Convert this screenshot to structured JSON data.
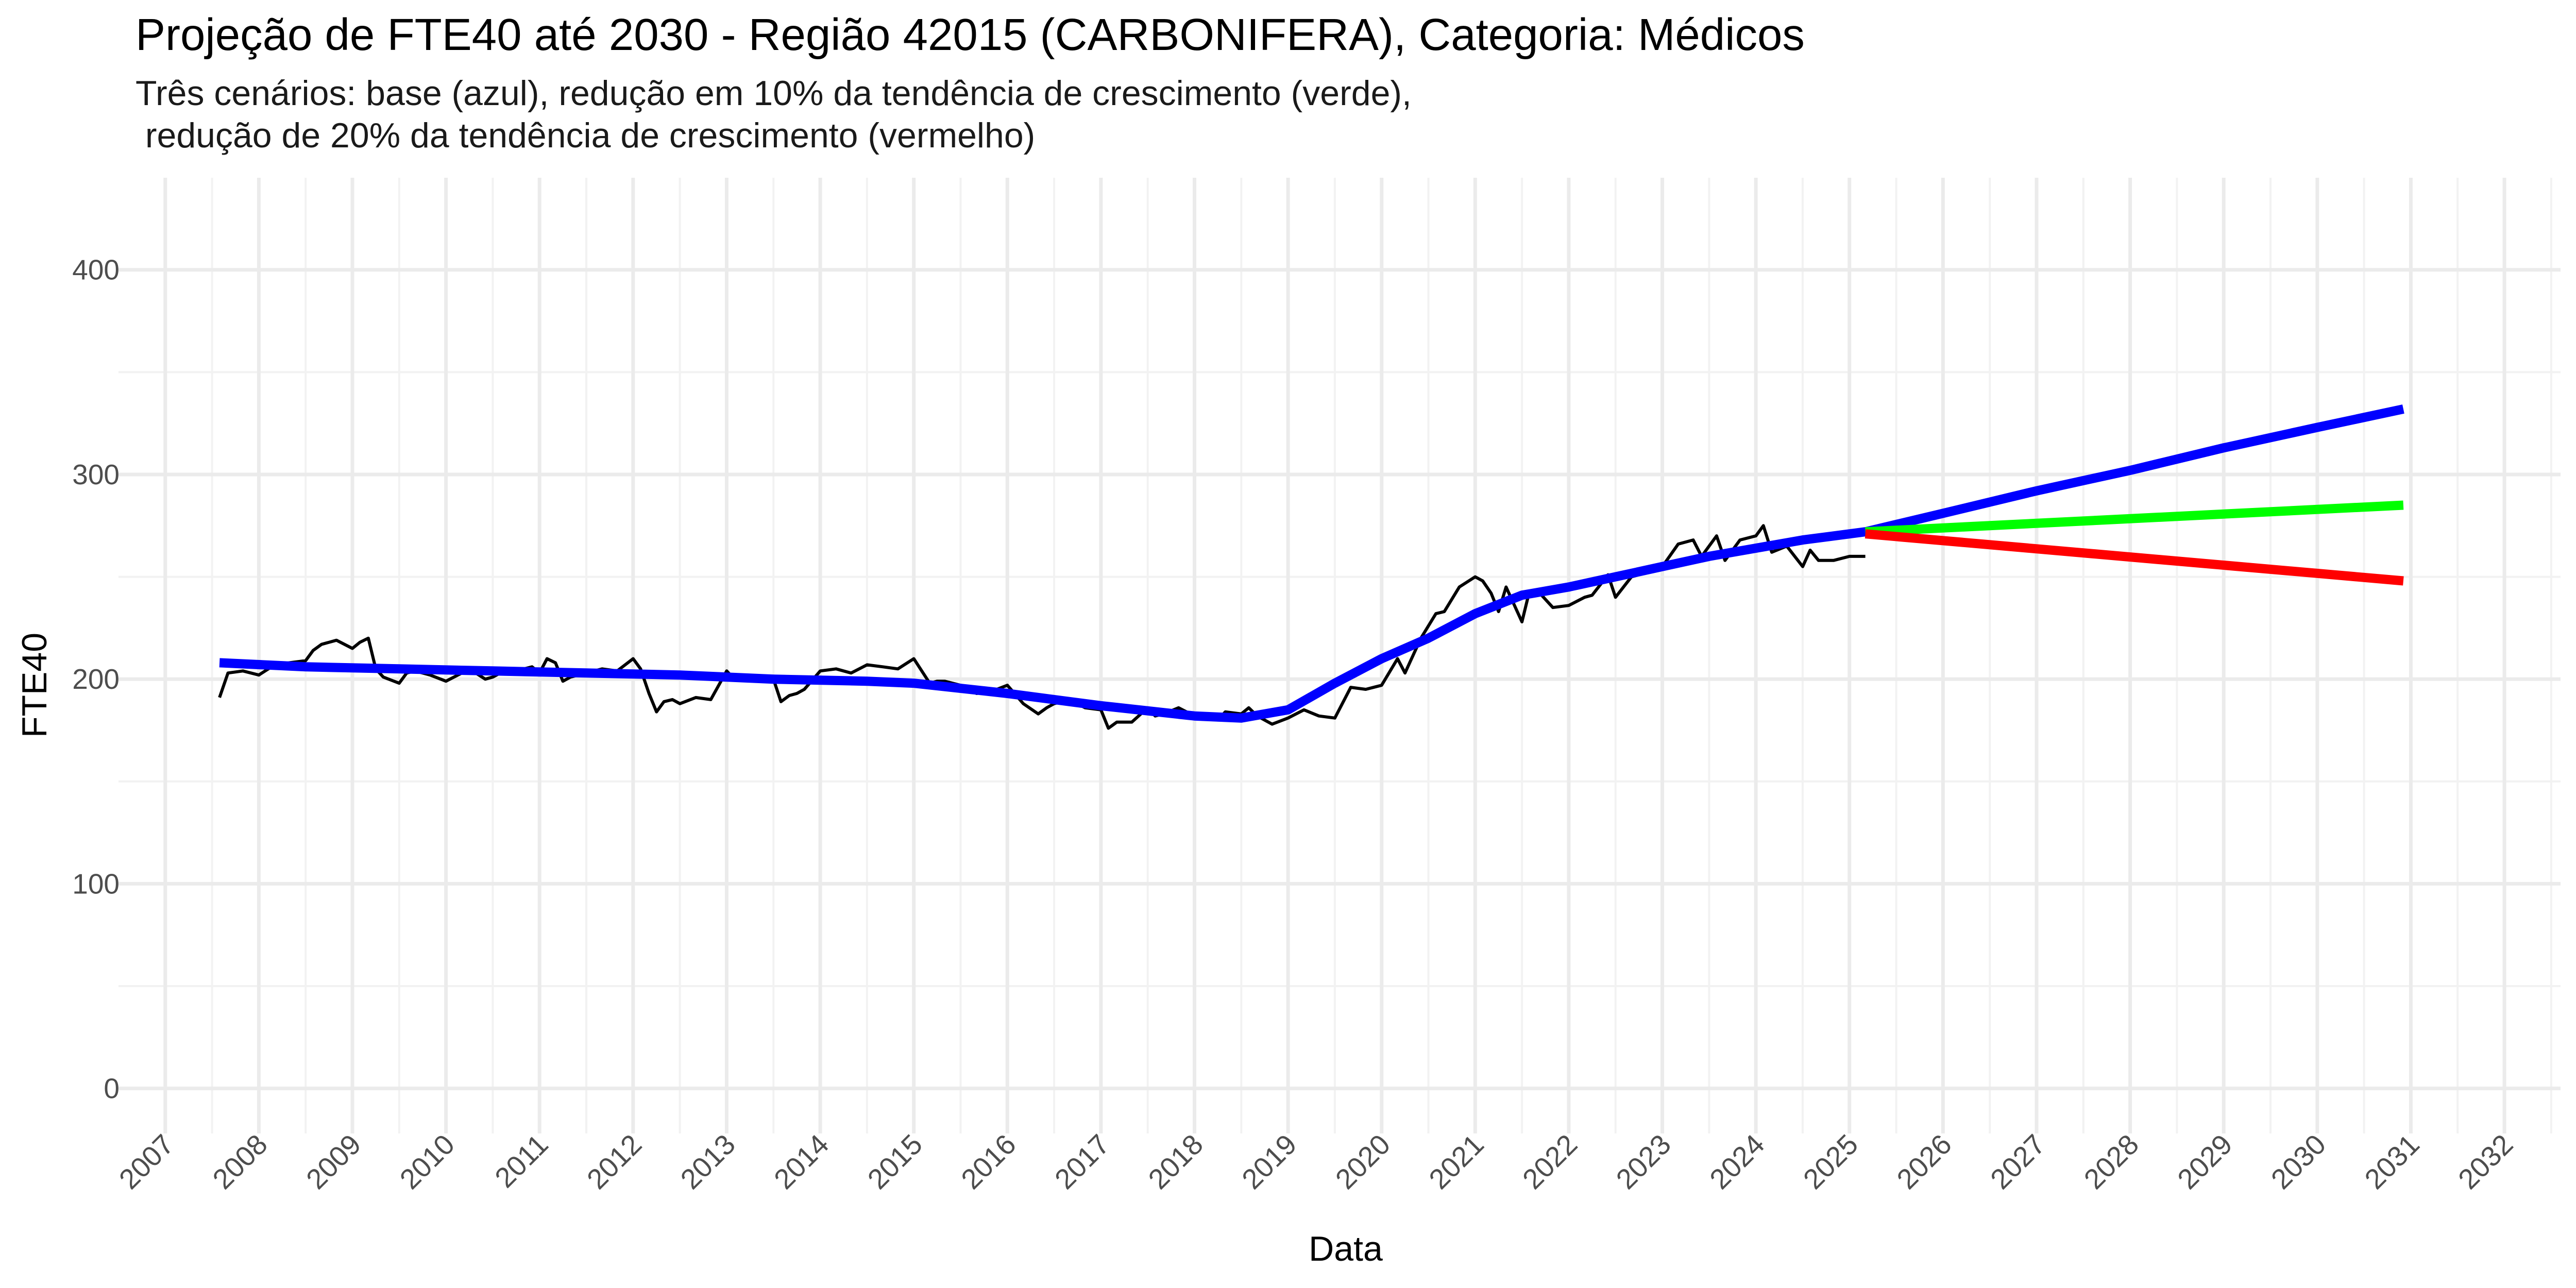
{
  "chart_data": {
    "type": "line",
    "title": "Projeção de FTE40 até 2030 - Região 42015 (CARBONIFERA), Categoria: Médicos",
    "subtitle": "Três cenários: base (azul), redução em 10% da tendência de crescimento (verde),\n redução de 20% da tendência de crescimento (vermelho)",
    "xlabel": "Data",
    "ylabel": "FTE40",
    "xlim": [
      2006.5,
      2032.6
    ],
    "ylim": [
      -22,
      445
    ],
    "x_ticks": [
      "2007",
      "2008",
      "2009",
      "2010",
      "2011",
      "2012",
      "2013",
      "2014",
      "2015",
      "2016",
      "2017",
      "2018",
      "2019",
      "2020",
      "2021",
      "2022",
      "2023",
      "2024",
      "2025",
      "2026",
      "2027",
      "2028",
      "2029",
      "2030",
      "2031",
      "2032"
    ],
    "y_ticks": [
      0,
      100,
      200,
      300,
      400
    ],
    "grid": true,
    "legend": "none",
    "series": [
      {
        "color": "#000000",
        "x": [
          2007.58,
          2007.67,
          2007.83,
          2008.0,
          2008.17,
          2008.33,
          2008.5,
          2008.58,
          2008.67,
          2008.83,
          2009.0,
          2009.08,
          2009.17,
          2009.25,
          2009.33,
          2009.5,
          2009.58,
          2009.67,
          2009.83,
          2010.0,
          2010.17,
          2010.25,
          2010.42,
          2010.5,
          2010.58,
          2010.75,
          2010.92,
          2011.0,
          2011.08,
          2011.17,
          2011.25,
          2011.33,
          2011.5,
          2011.67,
          2011.83,
          2012.0,
          2012.08,
          2012.17,
          2012.25,
          2012.33,
          2012.42,
          2012.5,
          2012.67,
          2012.83,
          2013.0,
          2013.08,
          2013.17,
          2013.33,
          2013.5,
          2013.58,
          2013.67,
          2013.75,
          2013.83,
          2014.0,
          2014.17,
          2014.33,
          2014.5,
          2014.67,
          2014.83,
          2015.0,
          2015.17,
          2015.25,
          2015.33,
          2015.5,
          2015.67,
          2015.83,
          2016.0,
          2016.17,
          2016.33,
          2016.42,
          2016.5,
          2016.67,
          2016.83,
          2017.0,
          2017.08,
          2017.17,
          2017.33,
          2017.5,
          2017.58,
          2017.67,
          2017.83,
          2018.0,
          2018.17,
          2018.25,
          2018.33,
          2018.5,
          2018.58,
          2018.67,
          2018.83,
          2019.0,
          2019.17,
          2019.33,
          2019.5,
          2019.67,
          2019.83,
          2020.0,
          2020.17,
          2020.25,
          2020.42,
          2020.58,
          2020.67,
          2020.83,
          2021.0,
          2021.08,
          2021.17,
          2021.25,
          2021.33,
          2021.5,
          2021.58,
          2021.67,
          2021.83,
          2022.0,
          2022.17,
          2022.25,
          2022.42,
          2022.5,
          2022.67,
          2022.83,
          2023.0,
          2023.17,
          2023.33,
          2023.42,
          2023.58,
          2023.67,
          2023.83,
          2024.0,
          2024.08,
          2024.17,
          2024.33,
          2024.5,
          2024.58,
          2024.67,
          2024.83,
          2025.0,
          2025.17
        ],
        "y": [
          191,
          203,
          204,
          202,
          207,
          208,
          209,
          214,
          217,
          219,
          215,
          218,
          220,
          205,
          201,
          198,
          203,
          204,
          202,
          199,
          203,
          205,
          200,
          201,
          203,
          204,
          206,
          203,
          210,
          208,
          199,
          201,
          203,
          205,
          204,
          210,
          205,
          193,
          184,
          189,
          190,
          188,
          191,
          190,
          204,
          200,
          201,
          199,
          200,
          189,
          192,
          193,
          195,
          204,
          205,
          203,
          207,
          206,
          205,
          210,
          198,
          199,
          199,
          197,
          193,
          194,
          197,
          188,
          183,
          186,
          188,
          190,
          186,
          185,
          176,
          179,
          179,
          186,
          182,
          183,
          186,
          182,
          183,
          180,
          184,
          183,
          186,
          182,
          178,
          181,
          185,
          182,
          181,
          196,
          195,
          197,
          210,
          203,
          220,
          232,
          233,
          245,
          250,
          248,
          242,
          233,
          245,
          228,
          243,
          243,
          235,
          236,
          240,
          241,
          251,
          240,
          250,
          252,
          255,
          266,
          268,
          260,
          270,
          258,
          268,
          270,
          275,
          262,
          265,
          255,
          263,
          258,
          258,
          260,
          260
        ]
      },
      {
        "name": "base (azul)",
        "color": "#0000ff",
        "x": [
          2007.58,
          2008.5,
          2009.5,
          2010.5,
          2011.5,
          2012.5,
          2013.5,
          2014.5,
          2015.0,
          2016.0,
          2017.0,
          2018.0,
          2018.5,
          2019.0,
          2019.5,
          2020.0,
          2020.5,
          2021.0,
          2021.5,
          2022.0,
          2022.5,
          2023.0,
          2023.5,
          2024.0,
          2024.5,
          2025.17,
          2026.0,
          2027.0,
          2028.0,
          2029.0,
          2030.0,
          2030.92
        ],
        "y": [
          208,
          206,
          205,
          204,
          203,
          202,
          200,
          199,
          198,
          193,
          187,
          182,
          181,
          185,
          198,
          210,
          220,
          232,
          241,
          245,
          250,
          255,
          260,
          264,
          268,
          272,
          281,
          292,
          302,
          313,
          323,
          332
        ]
      },
      {
        "name": "redução em 10% da tendência de crescimento (verde)",
        "color": "#00ff00",
        "x": [
          2025.17,
          2030.92
        ],
        "y": [
          272,
          285
        ]
      },
      {
        "name": "redução de 20% da tendência de crescimento (vermelho)",
        "color": "#ff0000",
        "x": [
          2025.17,
          2030.92
        ],
        "y": [
          271,
          248
        ]
      }
    ]
  }
}
